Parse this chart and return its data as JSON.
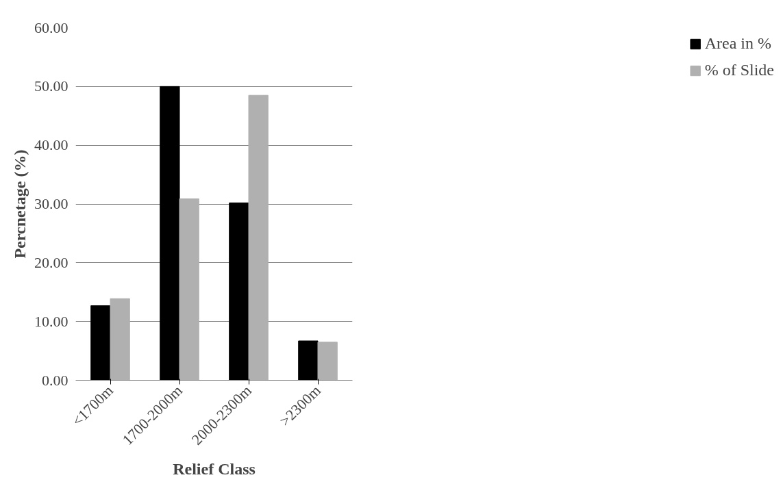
{
  "chart_data": {
    "type": "bar",
    "xlabel": "Relief Class",
    "ylabel": "Percnetage (%)",
    "categories": [
      "<1700m",
      "1700-2000m",
      "2000-2300m",
      ">2300m"
    ],
    "series": [
      {
        "name": "Area in %",
        "color": "#000000",
        "values": [
          12.7,
          50.0,
          30.2,
          6.7
        ]
      },
      {
        "name": "% of Slide",
        "color": "#b0b0b0",
        "values": [
          13.9,
          30.9,
          48.5,
          6.5
        ]
      }
    ],
    "ylim": [
      0,
      60
    ],
    "yticks": [
      {
        "value": 0,
        "label": "0.00"
      },
      {
        "value": 10,
        "label": "10.00"
      },
      {
        "value": 20,
        "label": "20.00"
      },
      {
        "value": 30,
        "label": "30.00"
      },
      {
        "value": 40,
        "label": "40.00"
      },
      {
        "value": 50,
        "label": "50.00"
      },
      {
        "value": 60,
        "label": "60.00"
      }
    ],
    "grid": "y",
    "legend": "right"
  }
}
